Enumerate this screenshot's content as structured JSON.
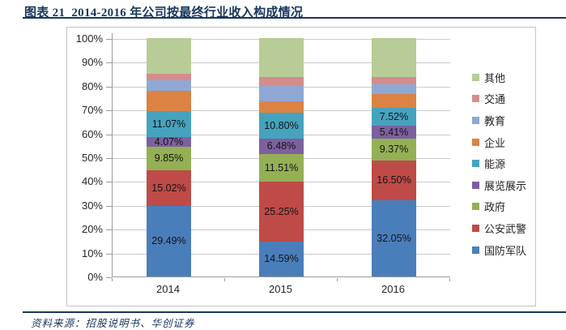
{
  "title": "图表 21  2014-2016 年公司按最终行业收入构成情况",
  "source": "资料来源：招股说明书、华创证券",
  "colors": {
    "heading_navy": "#17365D",
    "gridline": "#C9C9C9",
    "axis": "#9B9B9B",
    "chart_border": "#C3C3C3"
  },
  "chart_data": {
    "type": "bar",
    "subtype": "stacked-percent-column",
    "title": "2014-2016 年公司按最终行业收入构成情况",
    "categories": [
      "2014",
      "2015",
      "2016"
    ],
    "series": [
      {
        "name": "国防军队",
        "color": "#4A7EBB",
        "values": [
          29.49,
          14.59,
          32.05
        ],
        "labels": [
          "29.49%",
          "14.59%",
          "32.05%"
        ]
      },
      {
        "name": "公安武警",
        "color": "#BE4B48",
        "values": [
          15.02,
          25.25,
          16.5
        ],
        "labels": [
          "15.02%",
          "25.25%",
          "16.50%"
        ]
      },
      {
        "name": "政府",
        "color": "#94B054",
        "values": [
          9.85,
          11.51,
          9.37
        ],
        "labels": [
          "9.85%",
          "11.51%",
          "9.37%"
        ]
      },
      {
        "name": "展览展示",
        "color": "#7D60A0",
        "values": [
          4.07,
          6.48,
          5.41
        ],
        "labels": [
          "4.07%",
          "6.48%",
          "5.41%"
        ]
      },
      {
        "name": "能源",
        "color": "#46A3BE",
        "values": [
          11.07,
          10.8,
          7.52
        ],
        "labels": [
          "11.07%",
          "10.80%",
          "7.52%"
        ]
      },
      {
        "name": "企业",
        "color": "#DC8243",
        "values": [
          8.3,
          5.0,
          5.85
        ],
        "labels": [
          "",
          "",
          ""
        ]
      },
      {
        "name": "教育",
        "color": "#8FA8D3",
        "values": [
          4.6,
          6.4,
          3.9
        ],
        "labels": [
          "",
          "",
          ""
        ]
      },
      {
        "name": "交通",
        "color": "#D38D8D",
        "values": [
          2.6,
          3.6,
          3.1
        ],
        "labels": [
          "",
          "",
          ""
        ]
      },
      {
        "name": "其他",
        "color": "#B7CC96",
        "values": [
          15.0,
          16.37,
          16.25
        ],
        "labels": [
          "",
          "",
          ""
        ]
      }
    ],
    "ylabel": "",
    "xlabel": "",
    "ylim": [
      0,
      100
    ],
    "y_ticks": [
      "100%",
      "90%",
      "80%",
      "70%",
      "60%",
      "50%",
      "40%",
      "30%",
      "20%",
      "10%",
      "0%"
    ],
    "grid": true,
    "legend_position": "right",
    "legend_order": "top-is-last-series"
  }
}
